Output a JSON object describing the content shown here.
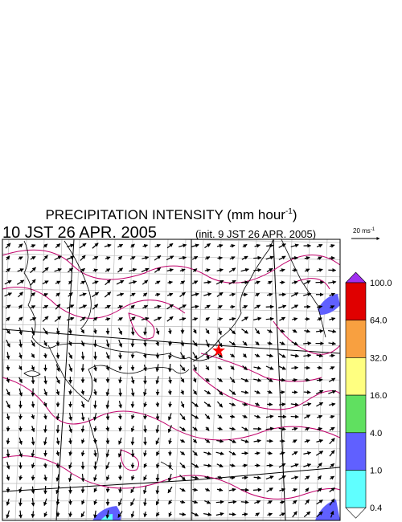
{
  "header": {
    "title": "PRECIPITATION INTENSITY (mm hour",
    "title_exponent": "-1",
    "title_close": ")",
    "valid_time": "10 JST 26 APR. 2005",
    "init_time": "(init. 9 JST 26 APR. 2005)"
  },
  "vector_key": {
    "unit": "20 ms",
    "unit_exponent": "-1"
  },
  "colorbar": {
    "labels": [
      "100.0",
      "64.0",
      "32.0",
      "16.0",
      "4.0",
      "1.0",
      "0.4"
    ],
    "colors": [
      "#a030f0",
      "#e00000",
      "#f8a040",
      "#ffff80",
      "#60e060",
      "#6060ff",
      "#60ffff",
      "#ffffff"
    ]
  }
}
